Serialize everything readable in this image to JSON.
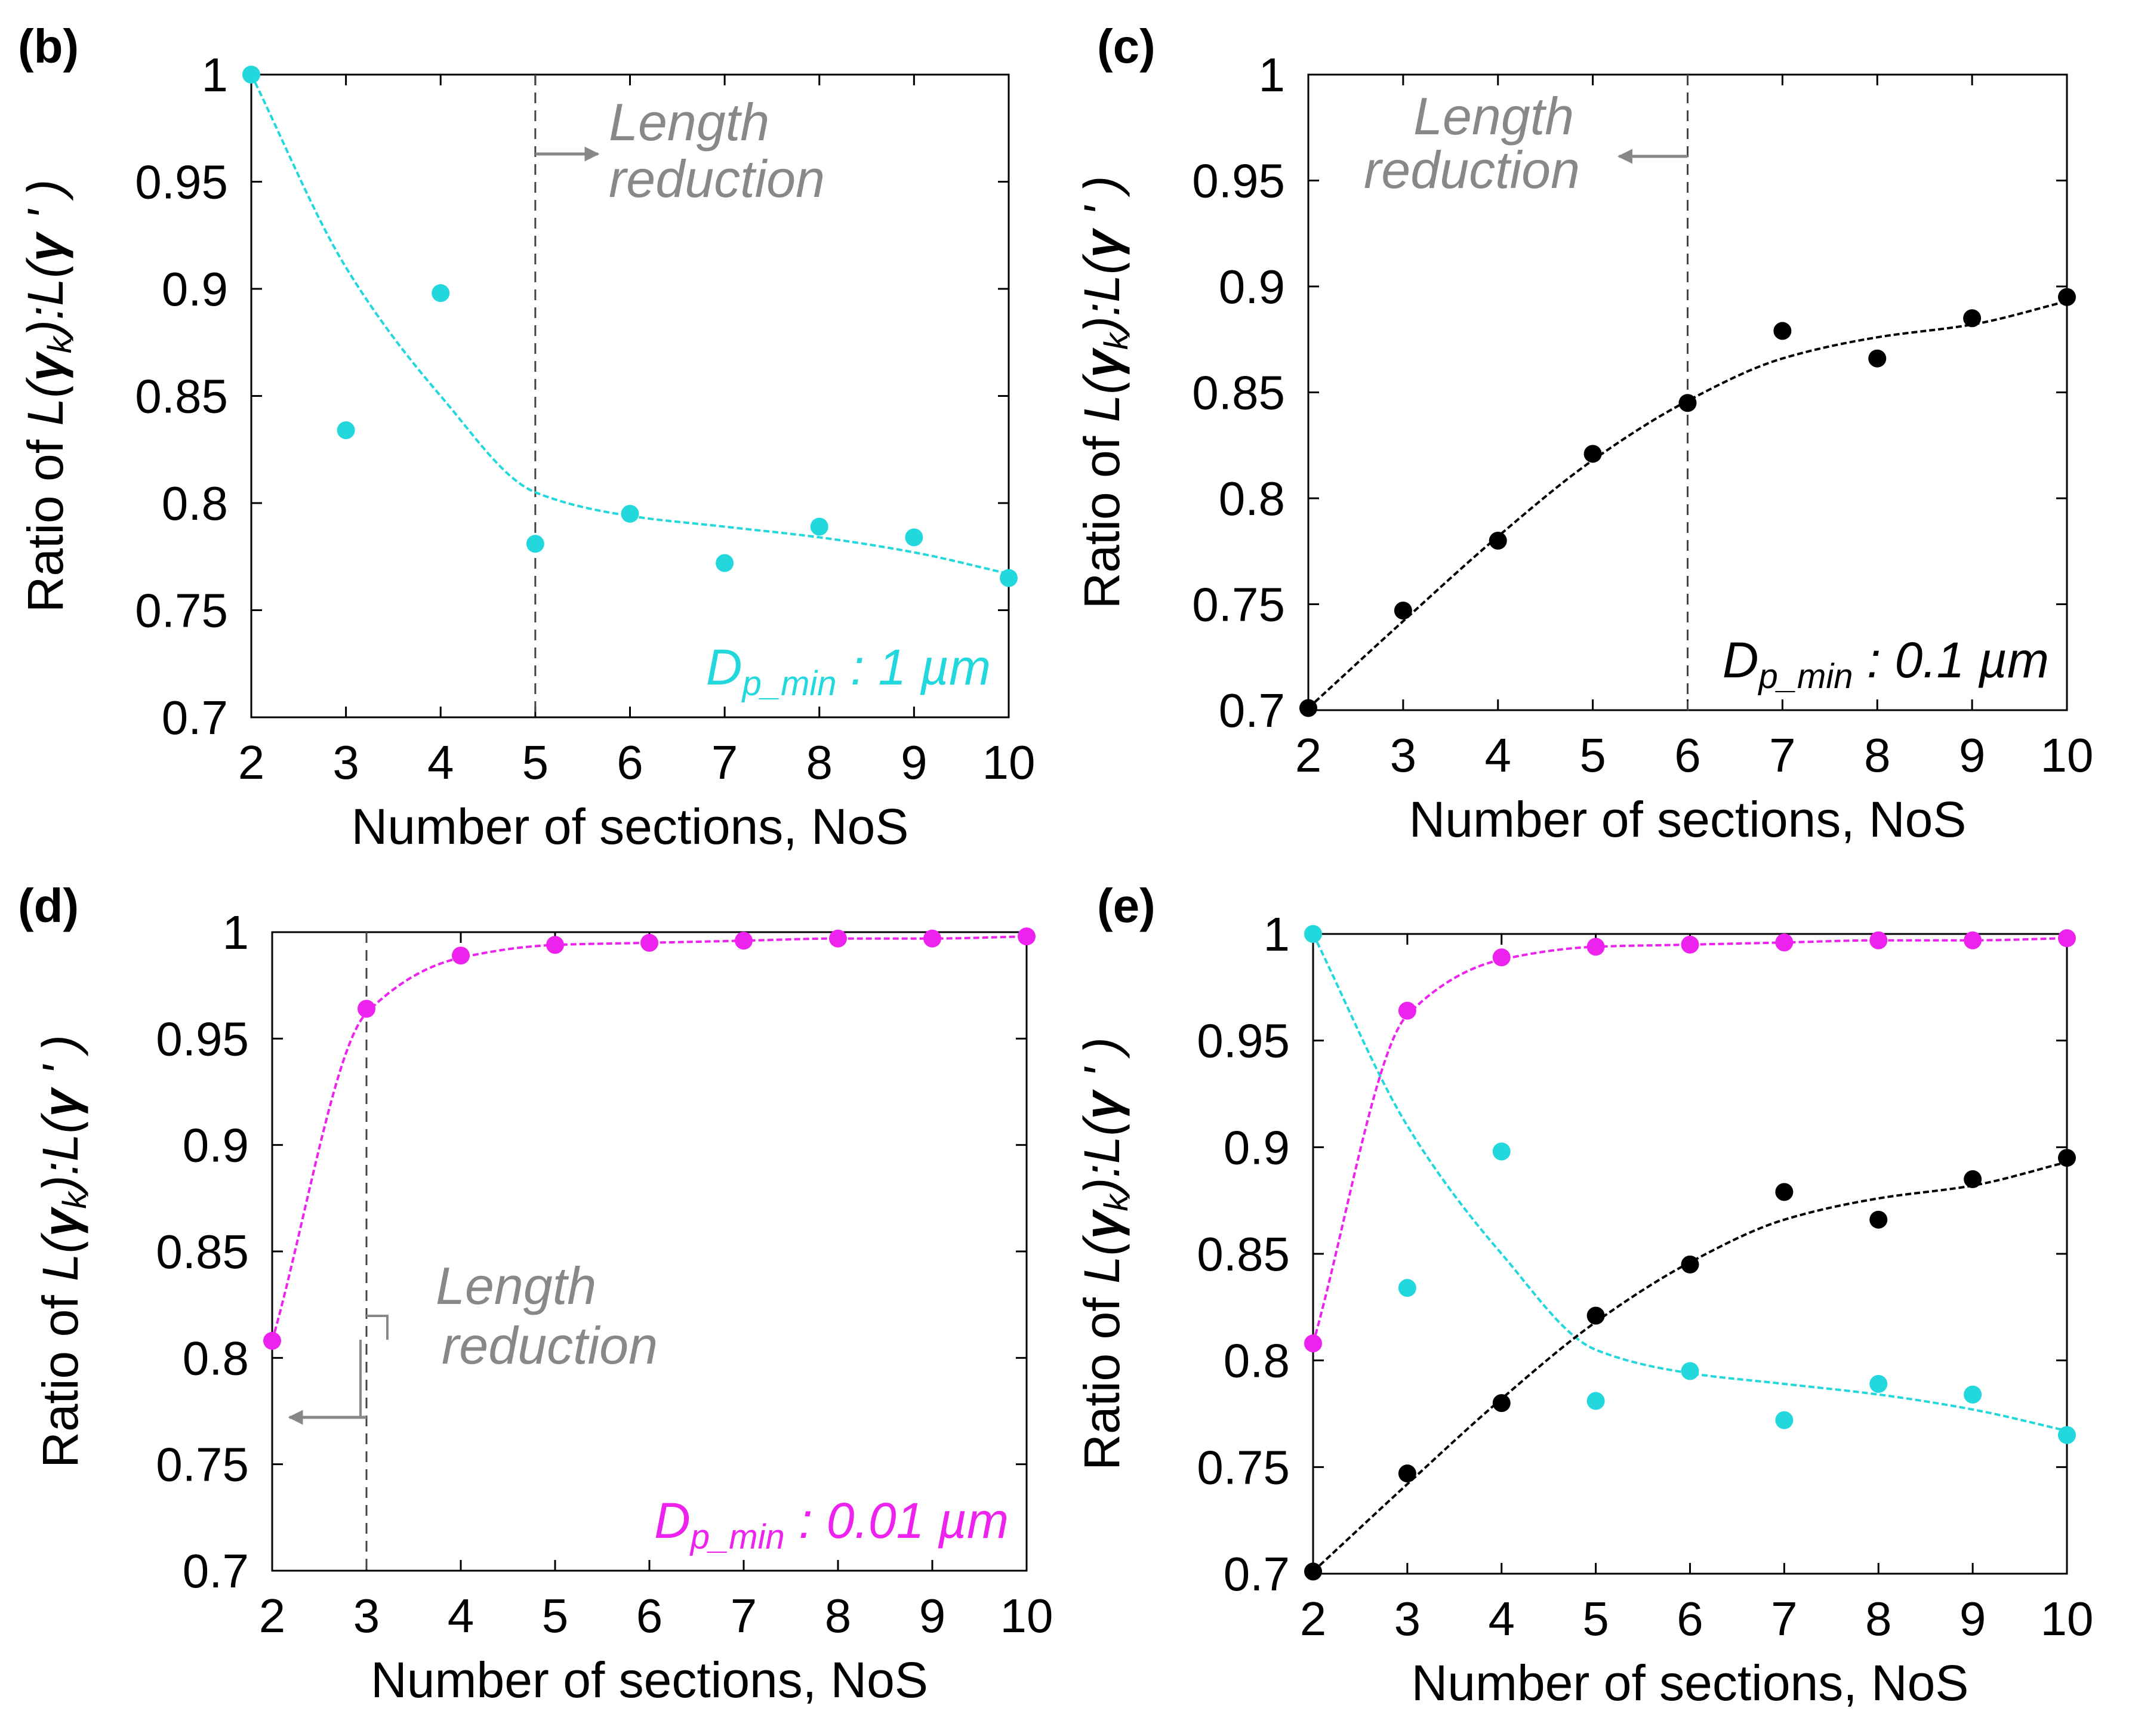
{
  "chart_data": [
    {
      "panel": "(b)",
      "type": "scatter",
      "xlabel": "Number of sections, NoS",
      "ylabel": "Ratio of L(γ_k):L(γ')",
      "ylabel_parts": {
        "prefix": "Ratio of ",
        "mid": ":L(",
        "gamma": "γ",
        "k": "k",
        "prime": "'"
      },
      "xlim": [
        2,
        10
      ],
      "ylim": [
        0.7,
        1
      ],
      "x_ticks": [
        "2",
        "3",
        "4",
        "5",
        "6",
        "7",
        "8",
        "9",
        "10"
      ],
      "y_ticks": [
        "0.7",
        "0.75",
        "0.8",
        "0.85",
        "0.9",
        "0.95",
        "1"
      ],
      "series": [
        {
          "name": "1 µm",
          "color": "#22d8dc",
          "x": [
            2,
            3,
            4,
            5,
            6,
            7,
            8,
            9,
            10
          ],
          "values": [
            1.0,
            0.834,
            0.898,
            0.781,
            0.795,
            0.772,
            0.789,
            0.784,
            0.765
          ],
          "fit": [
            1.0,
            0.91,
            0.85,
            0.805,
            0.794,
            0.789,
            0.784,
            0.777,
            0.767
          ]
        }
      ],
      "vline": 5,
      "annotation": {
        "line1": "Length",
        "line2": "reduction",
        "arrow": "right"
      },
      "dp_label": {
        "main": "D",
        "sub": "p_min",
        "value": ": 1 µm",
        "color": "#22d8dc"
      }
    },
    {
      "panel": "(c)",
      "type": "scatter",
      "xlabel": "Number of sections, NoS",
      "ylabel": "Ratio of L(γ_k):L(γ')",
      "ylabel_parts": {
        "prefix": "Ratio of ",
        "mid": ":L(",
        "gamma": "γ",
        "k": "k",
        "prime": "'"
      },
      "xlim": [
        2,
        10
      ],
      "ylim": [
        0.7,
        1
      ],
      "x_ticks": [
        "2",
        "3",
        "4",
        "5",
        "6",
        "7",
        "8",
        "9",
        "10"
      ],
      "y_ticks": [
        "0.7",
        "0.75",
        "0.8",
        "0.85",
        "0.9",
        "0.95",
        "1"
      ],
      "series": [
        {
          "name": "0.1 µm",
          "color": "#000000",
          "x": [
            2,
            3,
            4,
            5,
            6,
            7,
            8,
            9,
            10
          ],
          "values": [
            0.701,
            0.747,
            0.78,
            0.821,
            0.845,
            0.879,
            0.866,
            0.885,
            0.895
          ],
          "fit": [
            0.701,
            0.742,
            0.782,
            0.818,
            0.846,
            0.866,
            0.876,
            0.882,
            0.893
          ]
        }
      ],
      "vline": 6,
      "annotation": {
        "line1": "Length",
        "line2": "reduction",
        "arrow": "left"
      },
      "dp_label": {
        "main": "D",
        "sub": "p_min",
        "value": ": 0.1 µm",
        "color": "#000000"
      }
    },
    {
      "panel": "(d)",
      "type": "scatter",
      "xlabel": "Number of sections, NoS",
      "ylabel": "Ratio of L(γ_k):L(γ')",
      "ylabel_parts": {
        "prefix": "Ratio of ",
        "mid": ":L(",
        "gamma": "γ",
        "k": "k",
        "prime": "'"
      },
      "xlim": [
        2,
        10
      ],
      "ylim": [
        0.7,
        1
      ],
      "x_ticks": [
        "2",
        "3",
        "4",
        "5",
        "6",
        "7",
        "8",
        "9",
        "10"
      ],
      "y_ticks": [
        "0.7",
        "0.75",
        "0.8",
        "0.85",
        "0.9",
        "0.95",
        "1"
      ],
      "series": [
        {
          "name": "0.01 µm",
          "color": "#ee22ee",
          "x": [
            2,
            3,
            4,
            5,
            6,
            7,
            8,
            9,
            10
          ],
          "values": [
            0.808,
            0.964,
            0.989,
            0.994,
            0.995,
            0.996,
            0.997,
            0.997,
            0.998
          ],
          "fit": [
            0.808,
            0.962,
            0.988,
            0.994,
            0.995,
            0.996,
            0.997,
            0.997,
            0.998
          ]
        }
      ],
      "vline": 3,
      "annotation": {
        "line1": "Length",
        "line2": "reduction",
        "arrow": "left"
      },
      "dp_label": {
        "main": "D",
        "sub": "p_min",
        "value": ": 0.01 µm",
        "color": "#ee22ee"
      }
    },
    {
      "panel": "(e)",
      "type": "scatter",
      "xlabel": "Number of sections, NoS",
      "ylabel": "Ratio of L(γ_k):L(γ')",
      "ylabel_parts": {
        "prefix": "Ratio of ",
        "mid": ":L(",
        "gamma": "γ",
        "k": "k",
        "prime": "'"
      },
      "xlim": [
        2,
        10
      ],
      "ylim": [
        0.7,
        1
      ],
      "x_ticks": [
        "2",
        "3",
        "4",
        "5",
        "6",
        "7",
        "8",
        "9",
        "10"
      ],
      "y_ticks": [
        "0.7",
        "0.75",
        "0.8",
        "0.85",
        "0.9",
        "0.95",
        "1"
      ],
      "series": [
        {
          "name": "1 µm",
          "color": "#22d8dc",
          "x": [
            2,
            3,
            4,
            5,
            6,
            7,
            8,
            9,
            10
          ],
          "values": [
            1.0,
            0.834,
            0.898,
            0.781,
            0.795,
            0.772,
            0.789,
            0.784,
            0.765
          ],
          "fit": [
            1.0,
            0.91,
            0.85,
            0.805,
            0.794,
            0.789,
            0.784,
            0.777,
            0.767
          ]
        },
        {
          "name": "0.1 µm",
          "color": "#000000",
          "x": [
            2,
            3,
            4,
            5,
            6,
            7,
            8,
            9,
            10
          ],
          "values": [
            0.701,
            0.747,
            0.78,
            0.821,
            0.845,
            0.879,
            0.866,
            0.885,
            0.895
          ],
          "fit": [
            0.701,
            0.742,
            0.782,
            0.818,
            0.846,
            0.866,
            0.876,
            0.882,
            0.893
          ]
        },
        {
          "name": "0.01 µm",
          "color": "#ee22ee",
          "x": [
            2,
            3,
            4,
            5,
            6,
            7,
            8,
            9,
            10
          ],
          "values": [
            0.808,
            0.964,
            0.989,
            0.994,
            0.995,
            0.996,
            0.997,
            0.997,
            0.998
          ],
          "fit": [
            0.808,
            0.962,
            0.988,
            0.994,
            0.995,
            0.996,
            0.997,
            0.997,
            0.998
          ]
        }
      ]
    }
  ]
}
